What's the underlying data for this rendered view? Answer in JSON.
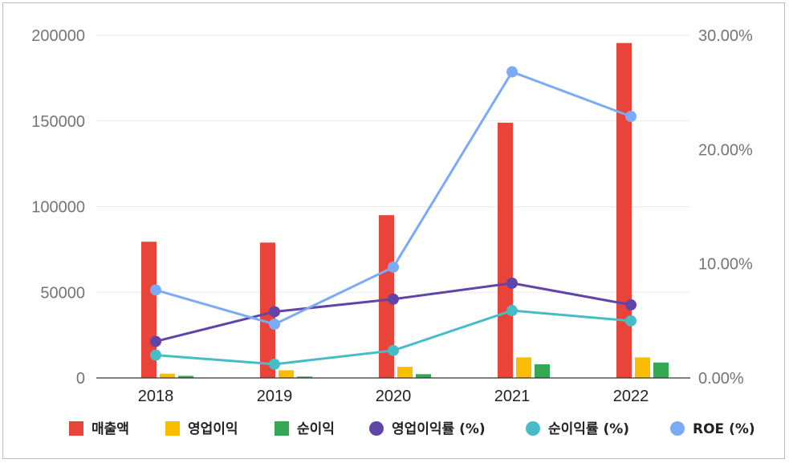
{
  "chart_data": {
    "type": "bar",
    "categories": [
      "2018",
      "2019",
      "2020",
      "2021",
      "2022"
    ],
    "y_left": {
      "min": 0,
      "max": 200000,
      "ticks": [
        "0",
        "50000",
        "100000",
        "150000",
        "200000"
      ]
    },
    "y_right": {
      "min": 0,
      "max": 0.3,
      "ticks": [
        "0.00%",
        "10.00%",
        "20.00%",
        "30.00%"
      ]
    },
    "grid": true,
    "legend_position": "bottom",
    "bar_series": [
      {
        "name": "매출액",
        "color": "#e8443a",
        "values": [
          79500,
          79000,
          95000,
          149000,
          195500
        ]
      },
      {
        "name": "영업이익",
        "color": "#fbbc04",
        "values": [
          2500,
          4500,
          6500,
          12000,
          12000
        ]
      },
      {
        "name": "순이익",
        "color": "#34a853",
        "values": [
          1200,
          800,
          2200,
          8000,
          9000
        ]
      }
    ],
    "line_series": [
      {
        "name": "영업이익률 (%)",
        "color": "#6144a8",
        "values": [
          0.032,
          0.058,
          0.069,
          0.083,
          0.064
        ]
      },
      {
        "name": "순이익률 (%)",
        "color": "#46bdc6",
        "values": [
          0.02,
          0.012,
          0.024,
          0.059,
          0.05
        ]
      },
      {
        "name": "ROE (%)",
        "color": "#7baaf7",
        "values": [
          0.077,
          0.047,
          0.097,
          0.268,
          0.229
        ]
      }
    ]
  }
}
